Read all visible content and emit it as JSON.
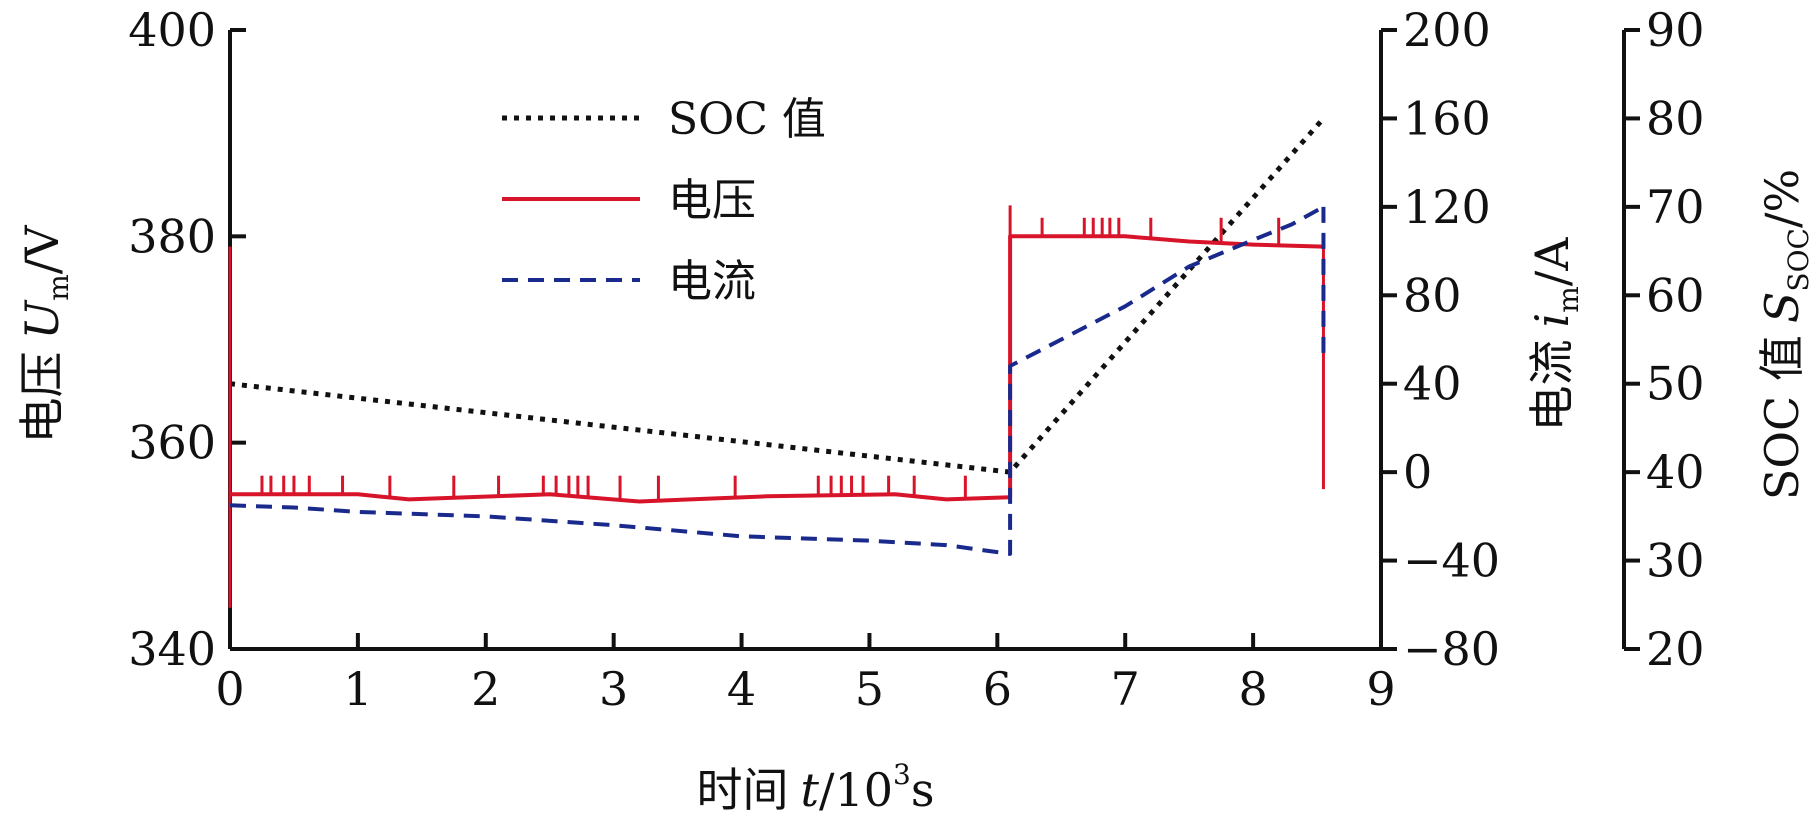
{
  "chart_data": {
    "type": "line",
    "x": {
      "label_main": "时间",
      "label_var": "t",
      "label_unit_prefix": "/10",
      "label_unit_sup": "3",
      "label_unit_suffix": "s",
      "range": [
        0,
        9
      ],
      "ticks": [
        "0",
        "1",
        "2",
        "3",
        "4",
        "5",
        "6",
        "7",
        "8",
        "9"
      ]
    },
    "y_left": {
      "label_main": "电压",
      "label_var": "U",
      "label_sub": "m",
      "label_unit": "/V",
      "range": [
        340,
        400
      ],
      "ticks": [
        "340",
        "360",
        "380",
        "400"
      ]
    },
    "y_right1": {
      "label_main": "电流",
      "label_var": "i",
      "label_sub": "m",
      "label_unit": "/A",
      "range": [
        -80,
        200
      ],
      "ticks": [
        "−80",
        "−40",
        "0",
        "40",
        "80",
        "120",
        "160",
        "200"
      ]
    },
    "y_right2": {
      "label_main": "SOC 值",
      "label_var": "S",
      "label_sub": "SOC",
      "label_unit": "/%",
      "range": [
        20,
        90
      ],
      "ticks": [
        "20",
        "30",
        "40",
        "50",
        "60",
        "70",
        "80",
        "90"
      ]
    },
    "legend": [
      "SOC 值",
      "电压",
      "电流"
    ],
    "colors": {
      "soc": "#111111",
      "voltage": "#d8142a",
      "current": "#1a2a8c",
      "axis": "#111111"
    },
    "series": [
      {
        "name": "SOC 值",
        "axis": "y_right2",
        "style": "dotted",
        "points": [
          [
            0,
            50.0
          ],
          [
            6.1,
            40.0
          ],
          [
            8.55,
            80.0
          ]
        ]
      },
      {
        "name": "电压",
        "axis": "y_left",
        "style": "solid",
        "points": [
          [
            0,
            355.0
          ],
          [
            1.0,
            355.0
          ],
          [
            1.4,
            354.5
          ],
          [
            2.5,
            355.0
          ],
          [
            3.2,
            354.3
          ],
          [
            3.6,
            354.5
          ],
          [
            4.2,
            354.8
          ],
          [
            5.2,
            355.0
          ],
          [
            5.6,
            354.5
          ],
          [
            6.1,
            354.7
          ],
          [
            6.1,
            380.0
          ],
          [
            7.0,
            380.0
          ],
          [
            7.5,
            379.5
          ],
          [
            8.0,
            379.2
          ],
          [
            8.55,
            379.0
          ]
        ],
        "spikes": [
          [
            0.25,
            356.8
          ],
          [
            0.32,
            356.8
          ],
          [
            0.42,
            356.8
          ],
          [
            0.5,
            356.8
          ],
          [
            0.62,
            356.8
          ],
          [
            0.88,
            356.8
          ],
          [
            1.25,
            356.8
          ],
          [
            1.75,
            356.8
          ],
          [
            2.1,
            356.8
          ],
          [
            2.45,
            356.8
          ],
          [
            2.55,
            356.8
          ],
          [
            2.65,
            356.8
          ],
          [
            2.72,
            356.8
          ],
          [
            2.8,
            356.8
          ],
          [
            3.05,
            356.8
          ],
          [
            3.35,
            356.8
          ],
          [
            3.95,
            356.8
          ],
          [
            4.6,
            356.8
          ],
          [
            4.7,
            356.8
          ],
          [
            4.78,
            356.8
          ],
          [
            4.86,
            356.8
          ],
          [
            4.95,
            356.8
          ],
          [
            5.15,
            356.8
          ],
          [
            5.35,
            356.8
          ],
          [
            5.75,
            356.8
          ],
          [
            6.35,
            381.8
          ],
          [
            6.68,
            381.8
          ],
          [
            6.75,
            381.8
          ],
          [
            6.82,
            381.8
          ],
          [
            6.88,
            381.8
          ],
          [
            6.95,
            381.8
          ],
          [
            7.2,
            381.8
          ],
          [
            7.75,
            381.8
          ],
          [
            8.2,
            381.8
          ]
        ],
        "drops": [
          [
            0.0,
            344.0
          ],
          [
            6.1,
            383.0
          ],
          [
            8.55,
            355.5
          ]
        ]
      },
      {
        "name": "电流",
        "axis": "y_right1",
        "style": "dashed",
        "points": [
          [
            0,
            -15
          ],
          [
            0.5,
            -16
          ],
          [
            1.0,
            -18
          ],
          [
            2.0,
            -20
          ],
          [
            3.0,
            -24
          ],
          [
            4.0,
            -29
          ],
          [
            5.0,
            -31
          ],
          [
            5.6,
            -33
          ],
          [
            6.1,
            -37
          ],
          [
            6.1,
            48
          ],
          [
            6.5,
            60
          ],
          [
            7.0,
            75
          ],
          [
            7.5,
            93
          ],
          [
            8.0,
            105
          ],
          [
            8.3,
            112
          ],
          [
            8.55,
            120
          ]
        ],
        "end_point": [
          8.55,
          50
        ]
      }
    ]
  }
}
